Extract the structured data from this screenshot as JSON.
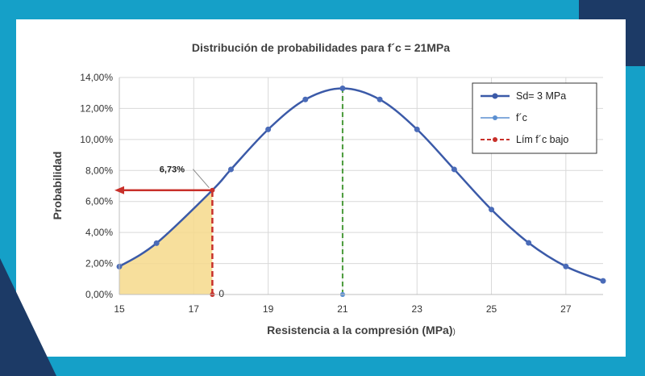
{
  "chart_data": {
    "type": "line",
    "title": "Distribución de probabilidades para f´c = 21MPa",
    "xlabel": "Resistencia a la compresión (MPa)",
    "xlabel_suffix": ")",
    "ylabel": "Probabilidad",
    "xlim": [
      15,
      28
    ],
    "ylim": [
      0,
      14
    ],
    "x_ticks": [
      "15",
      "17",
      "19",
      "21",
      "23",
      "25",
      "27"
    ],
    "y_ticks": [
      "0,00%",
      "2,00%",
      "4,00%",
      "6,00%",
      "8,00%",
      "10,00%",
      "12,00%",
      "14,00%"
    ],
    "grid": true,
    "legend_position": "top-right",
    "series": [
      {
        "name": "Sd= 3 MPa",
        "color": "#3b5aa8",
        "x": [
          15,
          16,
          17.5,
          18,
          19,
          20,
          21,
          22,
          23,
          24,
          25,
          26,
          27,
          28
        ],
        "y": [
          1.8,
          3.31,
          6.73,
          8.07,
          10.65,
          12.58,
          13.3,
          12.58,
          10.65,
          8.07,
          5.48,
          3.33,
          1.81,
          0.88
        ]
      },
      {
        "name": "f´c",
        "color": "#4a9a3a",
        "x": [
          21,
          21
        ],
        "y": [
          0,
          13.3
        ]
      },
      {
        "name": "Lím f´c bajo",
        "color": "#c8302a",
        "x": [
          17.5,
          17.5
        ],
        "y": [
          0,
          6.73
        ]
      }
    ],
    "annotations": {
      "callout": "6,73%",
      "zero_label": "0"
    },
    "colors": {
      "fill_area": "#f6d98b",
      "grid": "#d9d9d9"
    }
  }
}
